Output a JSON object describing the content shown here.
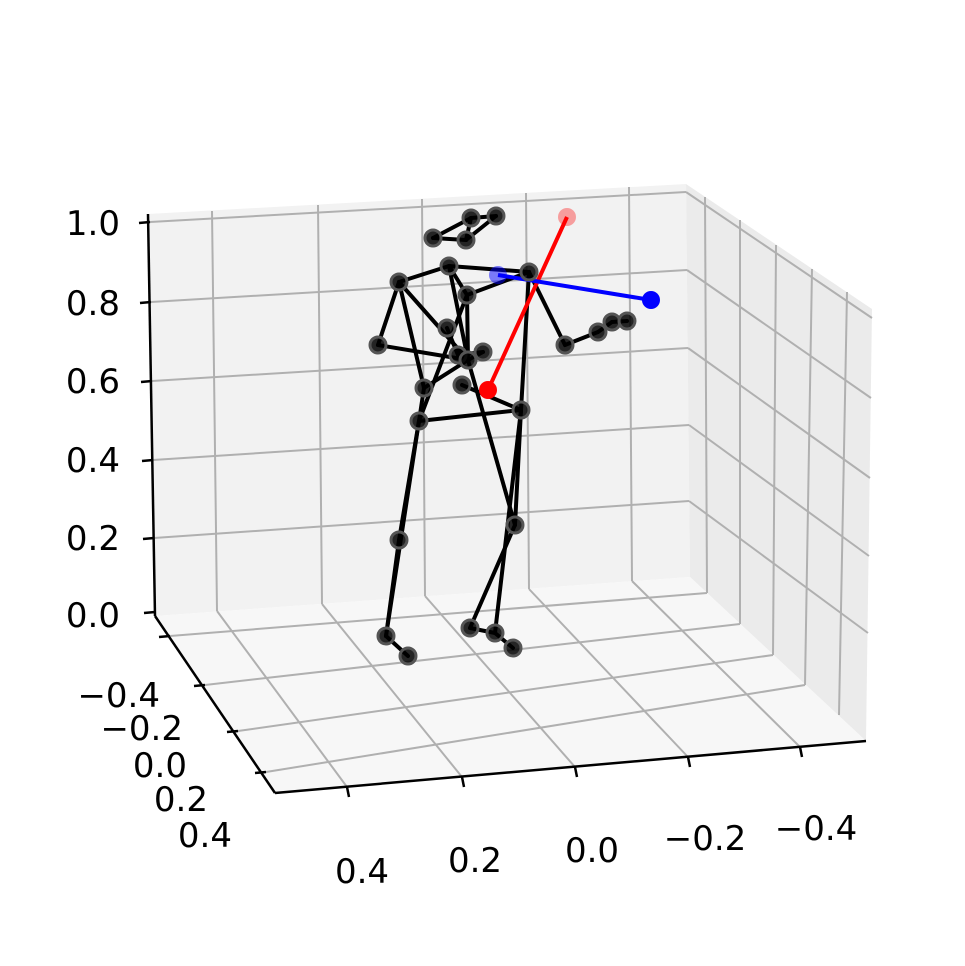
{
  "chart_data": {
    "type": "scatter",
    "projection": "3d",
    "grid": true,
    "title": "",
    "xlabel": "",
    "ylabel": "",
    "zlabel": "",
    "axes": {
      "x": {
        "ticks": [
          "0.4",
          "0.2",
          "0.0",
          "−0.2",
          "−0.4"
        ],
        "range": [
          -0.5,
          0.5
        ]
      },
      "y": {
        "ticks": [
          "−0.4",
          "−0.2",
          "0.0",
          "0.2",
          "0.4"
        ],
        "range": [
          -0.5,
          0.5
        ]
      },
      "z": {
        "ticks": [
          "0.0",
          "0.2",
          "0.4",
          "0.6",
          "0.8",
          "1.0"
        ],
        "range": [
          0.0,
          1.0
        ]
      }
    },
    "colors": {
      "skeleton": "#000000",
      "vector_red": "#ff0000",
      "vector_blue": "#0000ff"
    },
    "skeleton": {
      "joints": [
        {
          "name": "head-top-left",
          "p": [
            433,
            238
          ]
        },
        {
          "name": "head-top-mid",
          "p": [
            471,
            218
          ]
        },
        {
          "name": "head-top-right",
          "p": [
            496,
            216
          ]
        },
        {
          "name": "head-bottom",
          "p": [
            466,
            240
          ]
        },
        {
          "name": "neck",
          "p": [
            449,
            266
          ]
        },
        {
          "name": "right-shoulder",
          "p": [
            399,
            282
          ]
        },
        {
          "name": "chest",
          "p": [
            467,
            295
          ]
        },
        {
          "name": "left-shoulder",
          "p": [
            529,
            272
          ]
        },
        {
          "name": "right-elbow",
          "p": [
            447,
            328
          ]
        },
        {
          "name": "right-hand",
          "p": [
            378,
            345
          ]
        },
        {
          "name": "hand-cluster-a",
          "p": [
            458,
            355
          ]
        },
        {
          "name": "hand-cluster-b",
          "p": [
            468,
            360
          ]
        },
        {
          "name": "hand-cluster-c",
          "p": [
            483,
            352
          ]
        },
        {
          "name": "left-elbow",
          "p": [
            565,
            345
          ]
        },
        {
          "name": "left-hand-1",
          "p": [
            598,
            332
          ]
        },
        {
          "name": "left-hand-2",
          "p": [
            612,
            322
          ]
        },
        {
          "name": "left-hand-3",
          "p": [
            627,
            321
          ]
        },
        {
          "name": "pelvis-left",
          "p": [
            424,
            388
          ]
        },
        {
          "name": "pelvis-mid",
          "p": [
            462,
            385
          ]
        },
        {
          "name": "right-hip",
          "p": [
            419,
            421
          ]
        },
        {
          "name": "left-hip",
          "p": [
            521,
            410
          ]
        },
        {
          "name": "right-knee",
          "p": [
            399,
            540
          ]
        },
        {
          "name": "left-knee",
          "p": [
            515,
            525
          ]
        },
        {
          "name": "right-ankle",
          "p": [
            386,
            636
          ]
        },
        {
          "name": "right-toe",
          "p": [
            408,
            656
          ]
        },
        {
          "name": "left-heel",
          "p": [
            470,
            628
          ]
        },
        {
          "name": "left-ankle",
          "p": [
            495,
            633
          ]
        },
        {
          "name": "left-toe",
          "p": [
            513,
            648
          ]
        }
      ],
      "bones": [
        [
          0,
          1
        ],
        [
          1,
          2
        ],
        [
          1,
          3
        ],
        [
          0,
          3
        ],
        [
          3,
          2
        ],
        [
          4,
          5
        ],
        [
          4,
          6
        ],
        [
          4,
          7
        ],
        [
          6,
          7
        ],
        [
          5,
          9
        ],
        [
          9,
          11
        ],
        [
          5,
          11
        ],
        [
          4,
          11
        ],
        [
          6,
          11
        ],
        [
          8,
          10
        ],
        [
          10,
          12
        ],
        [
          11,
          12
        ],
        [
          7,
          13
        ],
        [
          13,
          14
        ],
        [
          14,
          15
        ],
        [
          15,
          16
        ],
        [
          7,
          20
        ],
        [
          6,
          19
        ],
        [
          5,
          17
        ],
        [
          17,
          19
        ],
        [
          18,
          20
        ],
        [
          19,
          20
        ],
        [
          17,
          11
        ],
        [
          19,
          21
        ],
        [
          21,
          23
        ],
        [
          23,
          24
        ],
        [
          19,
          23
        ],
        [
          20,
          22
        ],
        [
          22,
          25
        ],
        [
          25,
          26
        ],
        [
          26,
          27
        ],
        [
          20,
          26
        ],
        [
          11,
          22
        ]
      ]
    },
    "vectors": [
      {
        "name": "red-vector",
        "color": "#ff0000",
        "from": [
          488,
          390
        ],
        "to": [
          567,
          217
        ]
      },
      {
        "name": "blue-vector",
        "color": "#0000ff",
        "from": [
          498,
          275
        ],
        "to": [
          651,
          300
        ]
      }
    ]
  }
}
